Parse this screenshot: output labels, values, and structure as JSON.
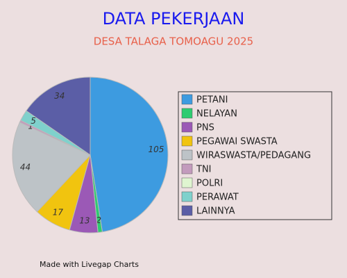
{
  "chart_data": {
    "type": "pie",
    "title": "DATA PEKERJAAN",
    "subtitle": "DESA TALAGA TOMOAGU 2025",
    "categories": [
      "PETANI",
      "NELAYAN",
      "PNS",
      "PEGAWAI SWASTA",
      "WIRASWASTA/PEDAGANG",
      "TNI",
      "POLRI",
      "PERAWAT",
      "LAINNYA"
    ],
    "values": [
      105,
      2,
      13,
      17,
      44,
      1,
      0,
      5,
      34
    ],
    "colors": [
      "#3d9be0",
      "#2ecc71",
      "#9b59b6",
      "#f1c40f",
      "#bdc3c7",
      "#c39bbd",
      "#dff5d0",
      "#7fd1cc",
      "#5b5ea6"
    ],
    "legend": "right"
  },
  "watermark": "Made with Livegap Charts"
}
